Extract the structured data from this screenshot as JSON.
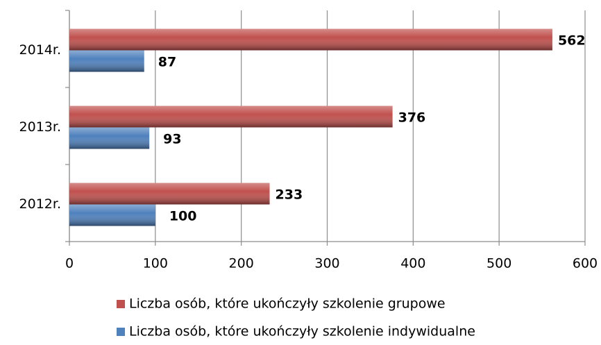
{
  "chart_data": {
    "type": "hbar",
    "categories": [
      "2012r.",
      "2013r.",
      "2014r."
    ],
    "series": [
      {
        "name": "Liczba osób, które ukończyły szkolenie grupowe",
        "color": "#c0504d",
        "values": [
          233,
          376,
          562
        ]
      },
      {
        "name": "Liczba osób, które ukończyły szkolenie indywidualne",
        "color": "#4f81bd",
        "values": [
          100,
          93,
          87
        ]
      }
    ],
    "xlim": [
      0,
      600
    ],
    "xticks": [
      0,
      100,
      200,
      300,
      400,
      500,
      600
    ],
    "grid": true,
    "legend": "bottom"
  }
}
